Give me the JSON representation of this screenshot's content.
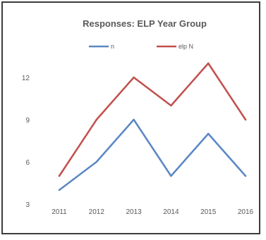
{
  "chart_data": {
    "type": "line",
    "title": "Responses: ELP Year Group",
    "xlabel": "",
    "ylabel": "",
    "x": [
      "2011",
      "2012",
      "2013",
      "2014",
      "2015",
      "2016"
    ],
    "ylim": [
      3,
      13
    ],
    "yticks": [
      3,
      6,
      9,
      12
    ],
    "grid": false,
    "legend": "top-center",
    "series": [
      {
        "name": "n",
        "color": "#5b87c5",
        "values": [
          4,
          6,
          9,
          5,
          8,
          5
        ]
      },
      {
        "name": "elp N",
        "color": "#c0504d",
        "values": [
          5,
          9,
          12,
          10,
          13,
          9
        ]
      }
    ]
  }
}
